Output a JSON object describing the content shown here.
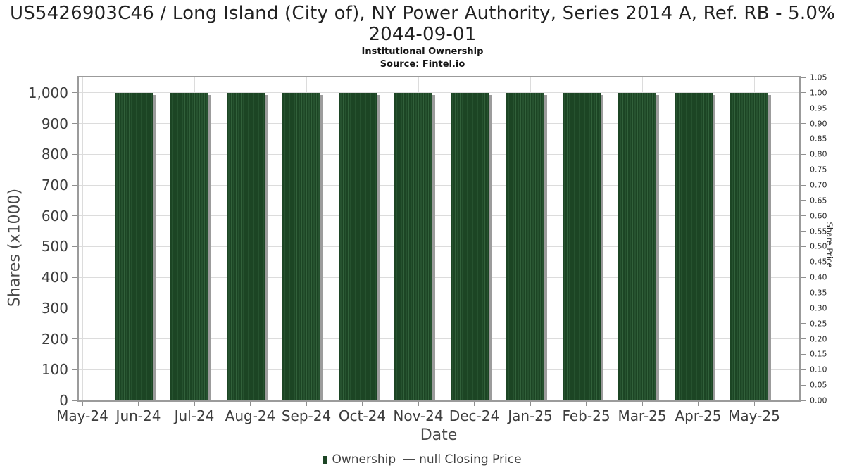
{
  "chart_data": {
    "type": "bar",
    "title": "US5426903C46 / Long Island (City of), NY Power Authority, Series 2014 A, Ref. RB - 5.0% 2044-09-01",
    "subtitle": "Institutional Ownership",
    "source": "Source: Fintel.io",
    "xlabel": "Date",
    "ylabel_left": "Shares (x1000)",
    "ylabel_right": "Share Price",
    "x_tick_labels": [
      "May-24",
      "Jun-24",
      "Jul-24",
      "Aug-24",
      "Sep-24",
      "Oct-24",
      "Nov-24",
      "Dec-24",
      "Jan-25",
      "Feb-25",
      "Mar-25",
      "Apr-25",
      "May-25"
    ],
    "series": [
      {
        "name": "Ownership",
        "type": "bar",
        "categories": [
          "Jun-24",
          "Jul-24",
          "Aug-24",
          "Sep-24",
          "Oct-24",
          "Nov-24",
          "Dec-24",
          "Jan-25",
          "Feb-25",
          "Mar-25",
          "Apr-25",
          "May-25"
        ],
        "values": [
          1000,
          1000,
          1000,
          1000,
          1000,
          1000,
          1000,
          1000,
          1000,
          1000,
          1000,
          1000
        ]
      },
      {
        "name": "null Closing Price",
        "type": "line",
        "values": []
      }
    ],
    "y_left": {
      "min": 0,
      "max": 1050,
      "ticks": [
        {
          "value": 0,
          "label": "0"
        },
        {
          "value": 100,
          "label": "100"
        },
        {
          "value": 200,
          "label": "200"
        },
        {
          "value": 300,
          "label": "300"
        },
        {
          "value": 400,
          "label": "400"
        },
        {
          "value": 500,
          "label": "500"
        },
        {
          "value": 600,
          "label": "600"
        },
        {
          "value": 700,
          "label": "700"
        },
        {
          "value": 800,
          "label": "800"
        },
        {
          "value": 900,
          "label": "900"
        },
        {
          "value": 1000,
          "label": "1,000"
        }
      ]
    },
    "y_right": {
      "min": 0,
      "max": 1.05,
      "ticks": [
        {
          "value": 0.0,
          "label": "0.00"
        },
        {
          "value": 0.05,
          "label": "0.05"
        },
        {
          "value": 0.1,
          "label": "0.10"
        },
        {
          "value": 0.15,
          "label": "0.15"
        },
        {
          "value": 0.2,
          "label": "0.20"
        },
        {
          "value": 0.25,
          "label": "0.25"
        },
        {
          "value": 0.3,
          "label": "0.30"
        },
        {
          "value": 0.35,
          "label": "0.35"
        },
        {
          "value": 0.4,
          "label": "0.40"
        },
        {
          "value": 0.45,
          "label": "0.45"
        },
        {
          "value": 0.5,
          "label": "0.50"
        },
        {
          "value": 0.55,
          "label": "0.55"
        },
        {
          "value": 0.6,
          "label": "0.60"
        },
        {
          "value": 0.65,
          "label": "0.65"
        },
        {
          "value": 0.7,
          "label": "0.70"
        },
        {
          "value": 0.75,
          "label": "0.75"
        },
        {
          "value": 0.8,
          "label": "0.80"
        },
        {
          "value": 0.85,
          "label": "0.85"
        },
        {
          "value": 0.9,
          "label": "0.90"
        },
        {
          "value": 0.95,
          "label": "0.95"
        },
        {
          "value": 1.0,
          "label": "1.00"
        },
        {
          "value": 1.05,
          "label": "1.05"
        }
      ]
    },
    "legend": [
      {
        "label": "Ownership",
        "marker": "square",
        "color": "#1c4524"
      },
      {
        "label": "null Closing Price",
        "marker": "line",
        "color": "#4a4a4a"
      }
    ],
    "grid": true,
    "legend_position": "bottom",
    "colors": {
      "bar_dark": "#1c4524",
      "bar_stripe": "#31603a",
      "bar_shadow": "#9c9c9c",
      "gridline": "#dcdcdc",
      "plot_border": "#9b9b9b",
      "tick_mark": "#8f8f8f"
    }
  }
}
